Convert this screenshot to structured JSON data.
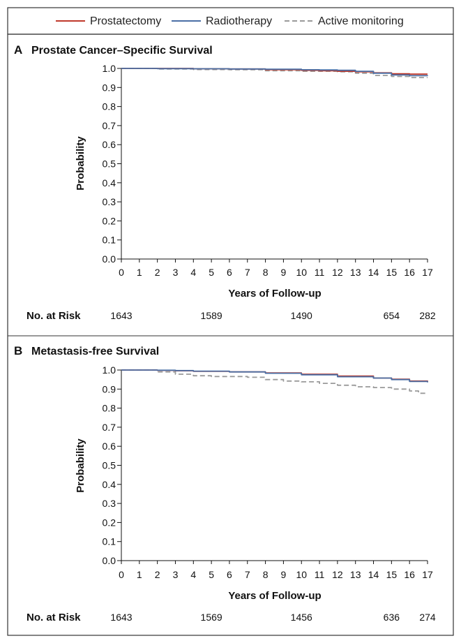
{
  "legend": [
    {
      "label": "Prostatectomy",
      "color": "#c0392b",
      "dash": false
    },
    {
      "label": "Radiotherapy",
      "color": "#4a6fa5",
      "dash": false
    },
    {
      "label": "Active monitoring",
      "color": "#9a9a9a",
      "dash": true
    }
  ],
  "panels": [
    {
      "letter": "A",
      "title": "Prostate Cancer–Specific Survival",
      "risk_label": "No. at Risk",
      "risk": [
        {
          "year": 0,
          "value": "1643"
        },
        {
          "year": 5,
          "value": "1589"
        },
        {
          "year": 10,
          "value": "1490"
        },
        {
          "year": 15,
          "value": "654"
        },
        {
          "year": 17,
          "value": "282"
        }
      ]
    },
    {
      "letter": "B",
      "title": "Metastasis-free Survival",
      "risk_label": "No. at Risk",
      "risk": [
        {
          "year": 0,
          "value": "1643"
        },
        {
          "year": 5,
          "value": "1569"
        },
        {
          "year": 10,
          "value": "1456"
        },
        {
          "year": 15,
          "value": "636"
        },
        {
          "year": 17,
          "value": "274"
        }
      ]
    }
  ],
  "chart_data": [
    {
      "type": "line",
      "title": "Prostate Cancer–Specific Survival",
      "xlabel": "Years of Follow-up",
      "ylabel": "Probability",
      "xlim": [
        0,
        17
      ],
      "ylim": [
        0.0,
        1.0
      ],
      "xticks": [
        "0",
        "1",
        "2",
        "3",
        "4",
        "5",
        "6",
        "7",
        "8",
        "9",
        "10",
        "11",
        "12",
        "13",
        "14",
        "15",
        "16",
        "17"
      ],
      "yticks": [
        "0.0",
        "0.1",
        "0.2",
        "0.3",
        "0.4",
        "0.5",
        "0.6",
        "0.7",
        "0.8",
        "0.9",
        "1.0"
      ],
      "series": [
        {
          "name": "Prostatectomy",
          "color": "#c0392b",
          "dash": false,
          "points": [
            [
              0,
              1.0
            ],
            [
              2,
              1.0
            ],
            [
              4,
              0.998
            ],
            [
              6,
              0.997
            ],
            [
              8,
              0.993
            ],
            [
              10,
              0.99
            ],
            [
              11,
              0.988
            ],
            [
              12,
              0.985
            ],
            [
              13,
              0.982
            ],
            [
              14,
              0.977
            ],
            [
              15,
              0.972
            ],
            [
              16,
              0.97
            ],
            [
              17,
              0.97
            ]
          ]
        },
        {
          "name": "Radiotherapy",
          "color": "#4a6fa5",
          "dash": false,
          "points": [
            [
              0,
              1.0
            ],
            [
              2,
              0.999
            ],
            [
              4,
              0.998
            ],
            [
              6,
              0.997
            ],
            [
              8,
              0.996
            ],
            [
              10,
              0.993
            ],
            [
              11,
              0.992
            ],
            [
              12,
              0.99
            ],
            [
              13,
              0.985
            ],
            [
              14,
              0.975
            ],
            [
              15,
              0.966
            ],
            [
              16,
              0.962
            ],
            [
              17,
              0.96
            ]
          ]
        },
        {
          "name": "Active monitoring",
          "color": "#9a9a9a",
          "dash": true,
          "points": [
            [
              0,
              1.0
            ],
            [
              2,
              0.997
            ],
            [
              4,
              0.994
            ],
            [
              6,
              0.993
            ],
            [
              8,
              0.988
            ],
            [
              10,
              0.985
            ],
            [
              12,
              0.982
            ],
            [
              13,
              0.975
            ],
            [
              14,
              0.963
            ],
            [
              15,
              0.958
            ],
            [
              16,
              0.952
            ],
            [
              17,
              0.952
            ]
          ]
        }
      ],
      "risk_table": {
        "label": "No. at Risk",
        "x": [
          0,
          5,
          10,
          15,
          17
        ],
        "values": [
          1643,
          1589,
          1490,
          654,
          282
        ]
      }
    },
    {
      "type": "line",
      "title": "Metastasis-free Survival",
      "xlabel": "Years of Follow-up",
      "ylabel": "Probability",
      "xlim": [
        0,
        17
      ],
      "ylim": [
        0.0,
        1.0
      ],
      "xticks": [
        "0",
        "1",
        "2",
        "3",
        "4",
        "5",
        "6",
        "7",
        "8",
        "9",
        "10",
        "11",
        "12",
        "13",
        "14",
        "15",
        "16",
        "17"
      ],
      "yticks": [
        "0.0",
        "0.1",
        "0.2",
        "0.3",
        "0.4",
        "0.5",
        "0.6",
        "0.7",
        "0.8",
        "0.9",
        "1.0"
      ],
      "series": [
        {
          "name": "Prostatectomy",
          "color": "#c0392b",
          "dash": false,
          "points": [
            [
              0,
              1.0
            ],
            [
              2,
              0.998
            ],
            [
              3,
              0.996
            ],
            [
              4,
              0.993
            ],
            [
              6,
              0.99
            ],
            [
              8,
              0.985
            ],
            [
              10,
              0.978
            ],
            [
              12,
              0.968
            ],
            [
              14,
              0.958
            ],
            [
              15,
              0.952
            ],
            [
              16,
              0.942
            ],
            [
              17,
              0.938
            ]
          ]
        },
        {
          "name": "Radiotherapy",
          "color": "#4a6fa5",
          "dash": false,
          "points": [
            [
              0,
              1.0
            ],
            [
              2,
              0.999
            ],
            [
              3,
              0.997
            ],
            [
              4,
              0.994
            ],
            [
              6,
              0.99
            ],
            [
              8,
              0.983
            ],
            [
              10,
              0.975
            ],
            [
              12,
              0.965
            ],
            [
              14,
              0.958
            ],
            [
              15,
              0.95
            ],
            [
              16,
              0.94
            ],
            [
              17,
              0.935
            ]
          ]
        },
        {
          "name": "Active monitoring",
          "color": "#9a9a9a",
          "dash": true,
          "points": [
            [
              0,
              1.0
            ],
            [
              2,
              0.99
            ],
            [
              3,
              0.978
            ],
            [
              4,
              0.97
            ],
            [
              5,
              0.966
            ],
            [
              7,
              0.962
            ],
            [
              8,
              0.95
            ],
            [
              9,
              0.942
            ],
            [
              10,
              0.938
            ],
            [
              11,
              0.93
            ],
            [
              12,
              0.92
            ],
            [
              13,
              0.912
            ],
            [
              14,
              0.908
            ],
            [
              15,
              0.9
            ],
            [
              16,
              0.89
            ],
            [
              16.5,
              0.878
            ],
            [
              17,
              0.876
            ]
          ]
        }
      ],
      "risk_table": {
        "label": "No. at Risk",
        "x": [
          0,
          5,
          10,
          15,
          17
        ],
        "values": [
          1643,
          1569,
          1456,
          636,
          274
        ]
      }
    }
  ]
}
